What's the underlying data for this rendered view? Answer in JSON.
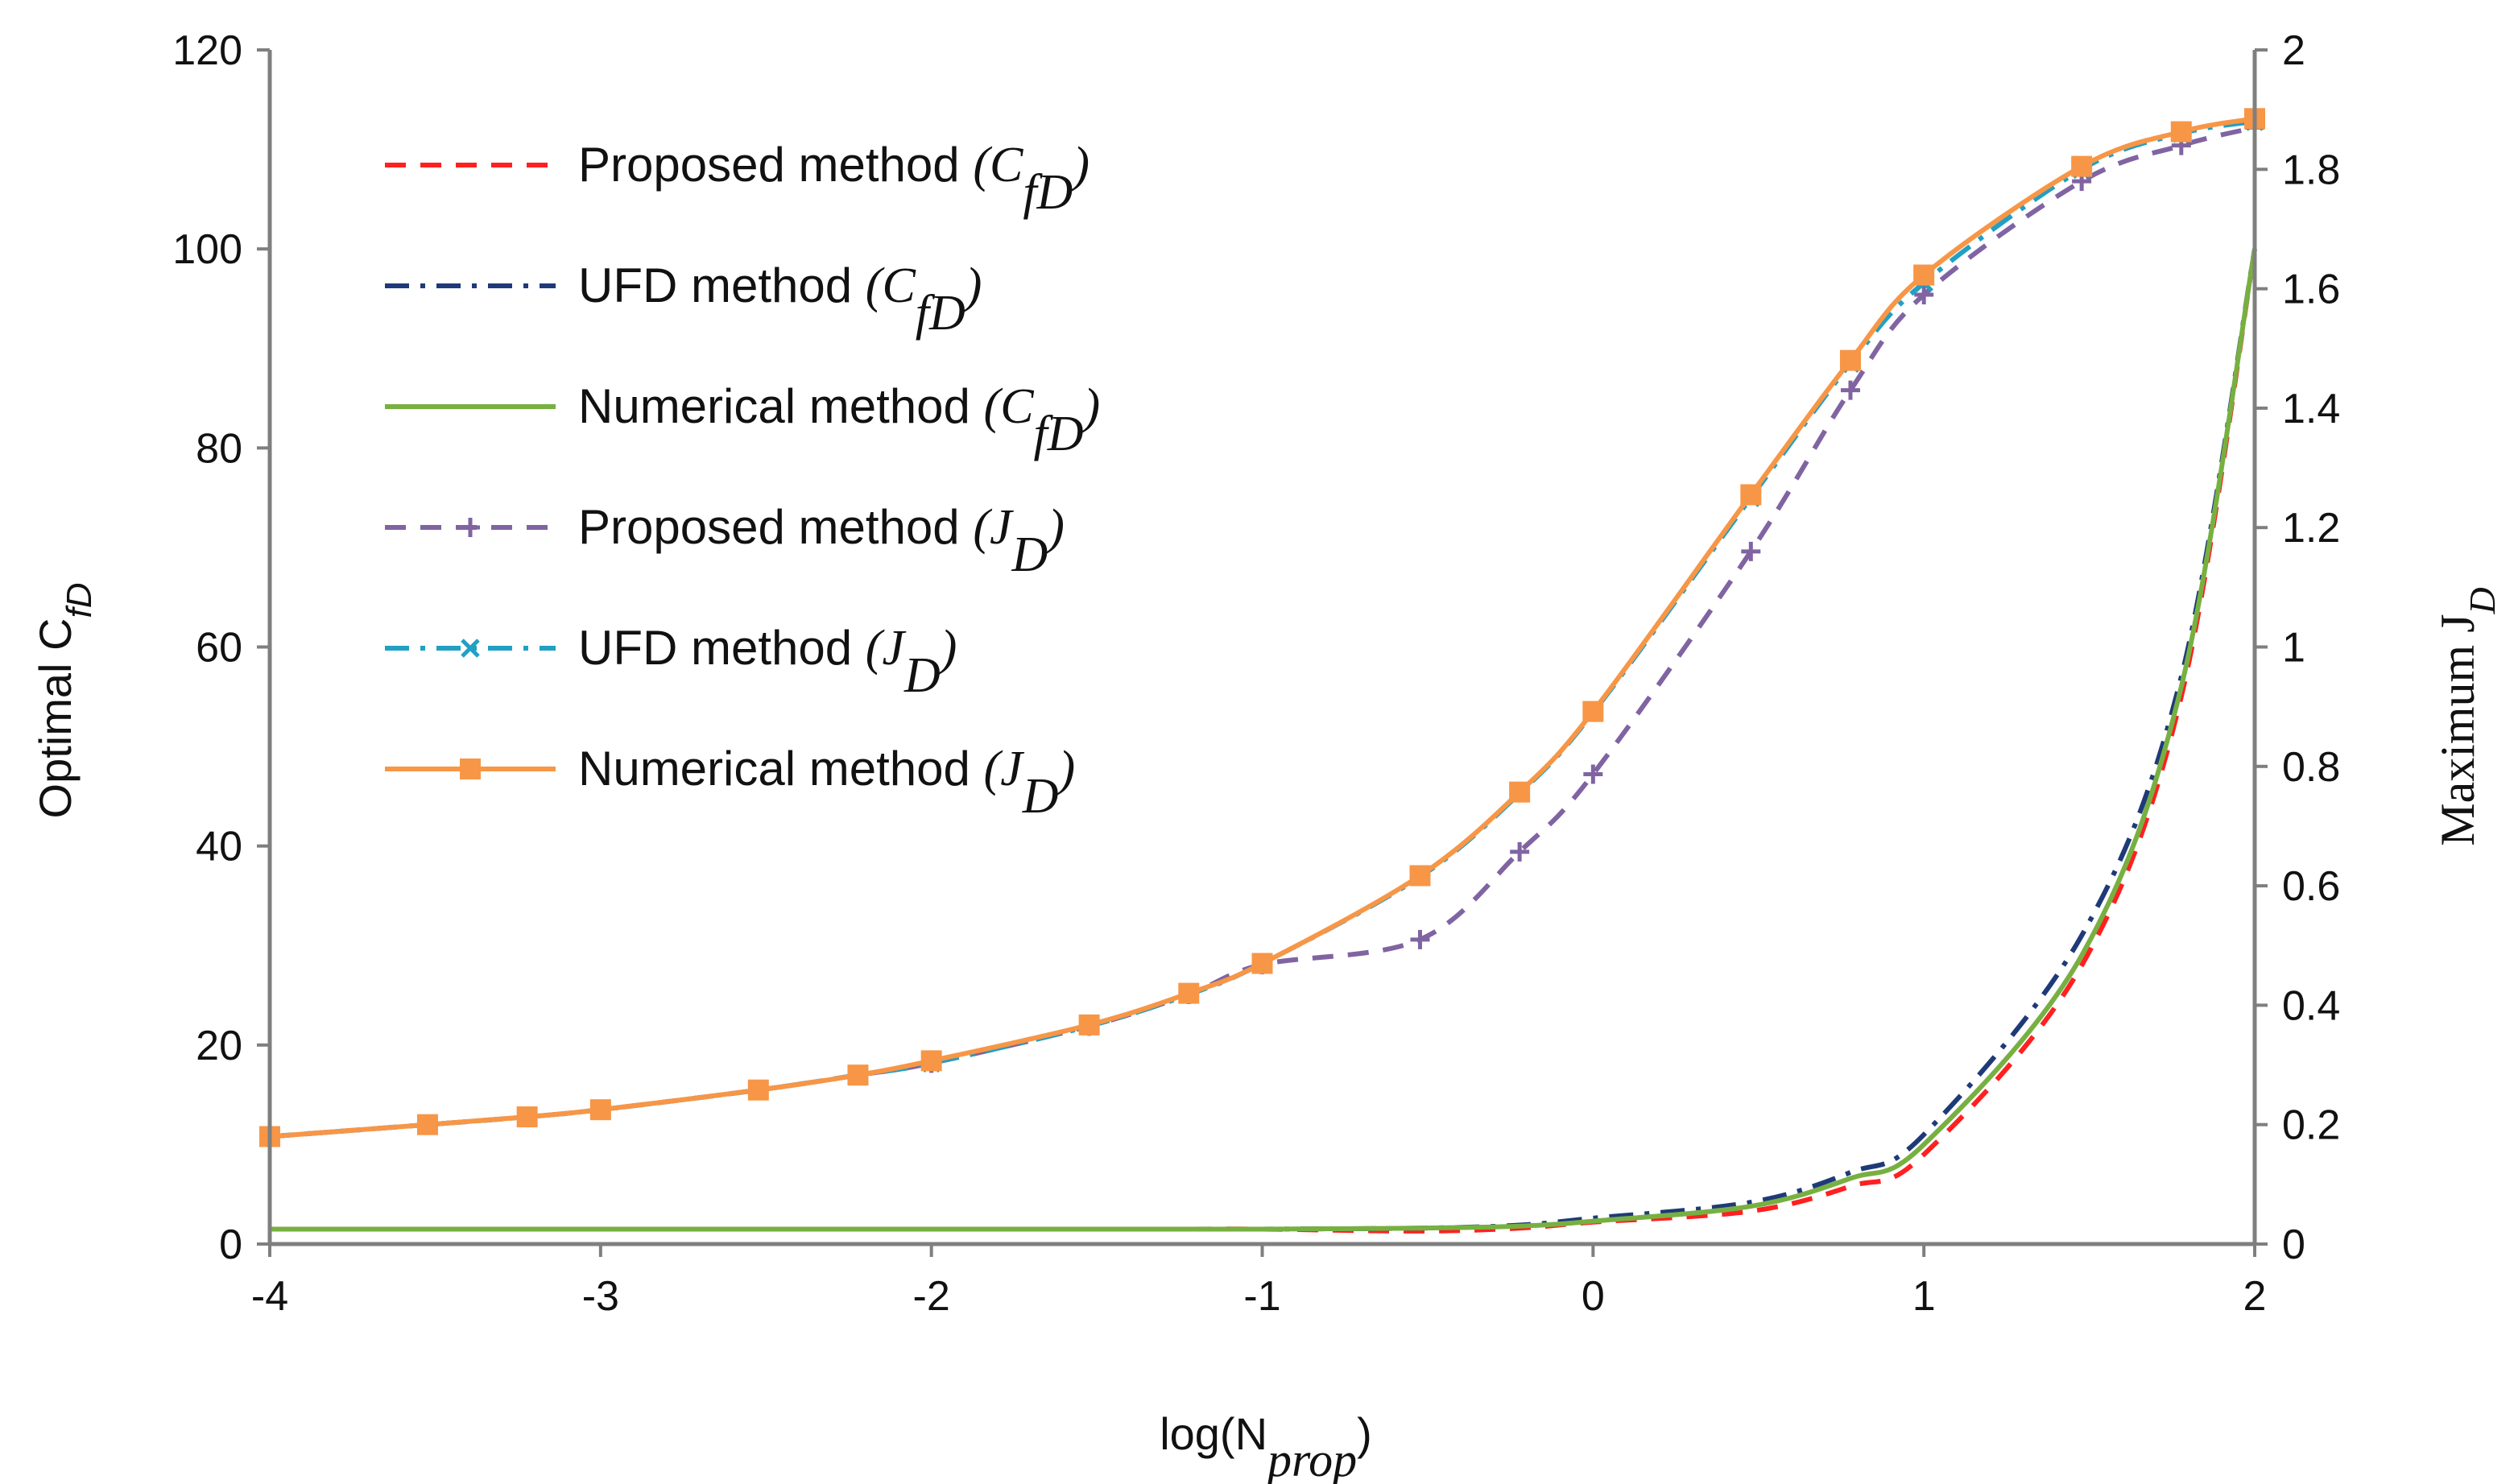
{
  "chart_data": {
    "type": "line",
    "xlabel": "log(N",
    "xlabel_sub": "prop",
    "xlabel_close": ")",
    "ylabel_left": "Optimal C",
    "ylabel_left_sub": "fD",
    "ylabel_right": "Maximum J",
    "ylabel_right_sub": "D",
    "xlim": [
      -4,
      2
    ],
    "ylim_left": [
      0,
      120
    ],
    "ylim_right": [
      0,
      2
    ],
    "x_ticks": [
      "-4",
      "-3",
      "-2",
      "-1",
      "0",
      "1",
      "2"
    ],
    "y_left_ticks": [
      "0",
      "20",
      "40",
      "60",
      "80",
      "100",
      "120"
    ],
    "y_right_ticks": [
      "0",
      "0.2",
      "0.4",
      "0.6",
      "0.8",
      "1",
      "1.2",
      "1.4",
      "1.6",
      "1.8",
      "2"
    ],
    "colors": {
      "proposed_cfd": "#ff2020",
      "ufd_cfd": "#1f3a78",
      "numerical_cfd": "#77b041",
      "proposed_jd": "#8064a2",
      "ufd_jd": "#21a0c4",
      "numerical_jd": "#f79646"
    },
    "series": [
      {
        "name": "Proposed method",
        "symbol": "C",
        "symbol_sub": "fD",
        "axis": "left",
        "style": "dash",
        "color_key": "proposed_cfd",
        "marker": "none",
        "x": [
          -4,
          -3.523,
          -3.222,
          -3,
          -2.523,
          -2.222,
          -2,
          -1.523,
          -1.222,
          -1,
          -0.523,
          -0.222,
          0,
          0.477,
          0.778,
          1,
          1.477,
          1.778,
          2
        ],
        "y": [
          1.5,
          1.5,
          1.5,
          1.5,
          1.5,
          1.5,
          1.5,
          1.5,
          1.5,
          1.5,
          1.3,
          1.6,
          2.2,
          3.3,
          5.8,
          9,
          28,
          55,
          100
        ]
      },
      {
        "name": "UFD method",
        "symbol": "C",
        "symbol_sub": "fD",
        "axis": "left",
        "style": "dashdot",
        "color_key": "ufd_cfd",
        "marker": "none",
        "x": [
          -4,
          -3.523,
          -3.222,
          -3,
          -2.523,
          -2.222,
          -2,
          -1.523,
          -1.222,
          -1,
          -0.523,
          -0.222,
          0,
          0.477,
          0.778,
          1,
          1.477,
          1.778,
          2
        ],
        "y": [
          1.5,
          1.5,
          1.5,
          1.5,
          1.5,
          1.5,
          1.5,
          1.5,
          1.5,
          1.5,
          1.6,
          1.9,
          2.6,
          4.2,
          7.2,
          11,
          31,
          57,
          100
        ]
      },
      {
        "name": "Numerical method",
        "symbol": "C",
        "symbol_sub": "fD",
        "axis": "left",
        "style": "solid",
        "color_key": "numerical_cfd",
        "marker": "none",
        "x": [
          -4,
          -3.523,
          -3.222,
          -3,
          -2.523,
          -2.222,
          -2,
          -1.523,
          -1.222,
          -1,
          -0.523,
          -0.222,
          0,
          0.477,
          0.778,
          1,
          1.477,
          1.778,
          2
        ],
        "y": [
          1.5,
          1.5,
          1.5,
          1.5,
          1.5,
          1.5,
          1.5,
          1.5,
          1.5,
          1.5,
          1.6,
          1.8,
          2.3,
          3.8,
          6.6,
          10,
          29,
          56,
          100
        ]
      },
      {
        "name": "Proposed method",
        "symbol": "J",
        "symbol_sub": "D",
        "axis": "right",
        "style": "dash",
        "color_key": "proposed_jd",
        "marker": "plus",
        "x": [
          -4,
          -3.523,
          -3.222,
          -3,
          -2.523,
          -2.222,
          -2,
          -1.523,
          -1.222,
          -1,
          -0.523,
          -0.222,
          0,
          0.477,
          0.778,
          1,
          1.477,
          1.778,
          2
        ],
        "y": [
          0.18,
          0.2,
          0.213,
          0.225,
          0.258,
          0.283,
          0.303,
          0.365,
          0.418,
          0.468,
          0.51,
          0.657,
          0.787,
          1.16,
          1.43,
          1.59,
          1.78,
          1.84,
          1.87
        ]
      },
      {
        "name": "UFD method",
        "symbol": "J",
        "symbol_sub": "D",
        "axis": "right",
        "style": "dashdot",
        "color_key": "ufd_jd",
        "marker": "x",
        "x": [
          -4,
          -3.523,
          -3.222,
          -3,
          -2.523,
          -2.222,
          -2,
          -1.523,
          -1.222,
          -1,
          -0.523,
          -0.222,
          0,
          0.477,
          0.778,
          1,
          1.477,
          1.778,
          2
        ],
        "y": [
          0.18,
          0.2,
          0.213,
          0.225,
          0.258,
          0.283,
          0.303,
          0.365,
          0.418,
          0.47,
          0.615,
          0.755,
          0.89,
          1.25,
          1.475,
          1.61,
          1.8,
          1.86,
          1.88
        ]
      },
      {
        "name": "Numerical method",
        "symbol": "J",
        "symbol_sub": "D",
        "axis": "right",
        "style": "solid",
        "color_key": "numerical_jd",
        "marker": "square",
        "x": [
          -4,
          -3.523,
          -3.222,
          -3,
          -2.523,
          -2.222,
          -2,
          -1.523,
          -1.222,
          -1,
          -0.523,
          -0.222,
          0,
          0.477,
          0.778,
          1,
          1.477,
          1.778,
          2
        ],
        "y": [
          0.18,
          0.2,
          0.213,
          0.225,
          0.258,
          0.283,
          0.307,
          0.367,
          0.42,
          0.47,
          0.617,
          0.757,
          0.892,
          1.255,
          1.48,
          1.623,
          1.805,
          1.863,
          1.885
        ]
      }
    ]
  }
}
